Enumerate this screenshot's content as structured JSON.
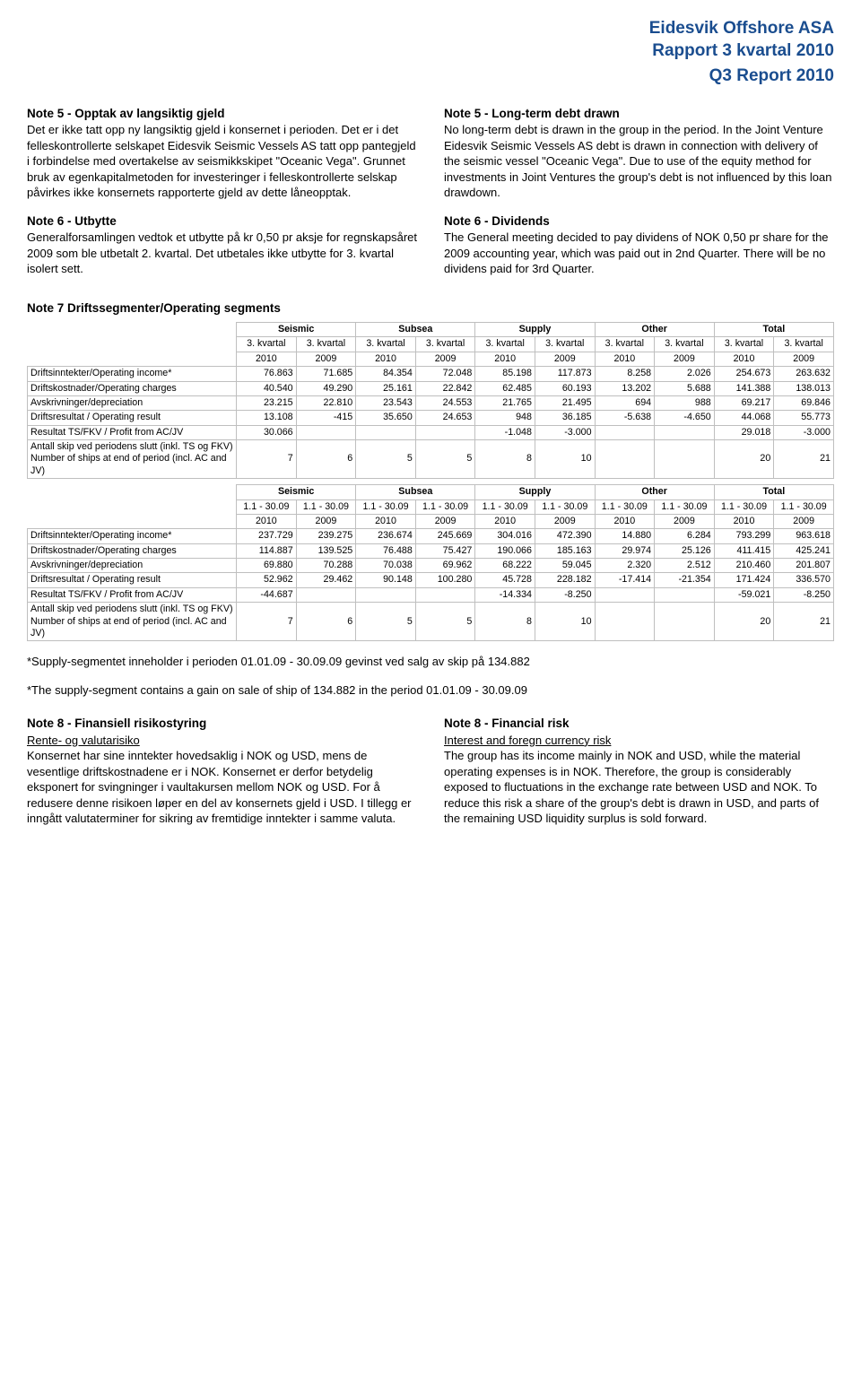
{
  "header": {
    "company": "Eidesvik Offshore ASA",
    "report_no": "Rapport 3 kvartal 2010",
    "report_en": "Q3 Report 2010"
  },
  "left_notes": {
    "n5_title": "Note 5 - Opptak av langsiktig gjeld",
    "n5_body": "Det er ikke tatt opp ny langsiktig gjeld i konsernet i perioden. Det er i det felleskontrollerte selskapet Eidesvik Seismic Vessels AS tatt opp pantegjeld i forbindelse med overtakelse av seismikkskipet \"Oceanic Vega\". Grunnet bruk av egenkapitalmetoden for investeringer i felleskontrollerte selskap påvirkes ikke konsernets rapporterte gjeld av dette låneopptak.",
    "n6_title": "Note 6 - Utbytte",
    "n6_body": "Generalforsamlingen vedtok et utbytte på kr 0,50 pr aksje for regnskapsåret 2009 som ble utbetalt 2. kvartal. Det utbetales ikke utbytte for 3. kvartal isolert sett."
  },
  "right_notes": {
    "n5_title": "Note 5 - Long-term debt drawn",
    "n5_body": "No long-term debt is drawn in the group in the period. In the Joint Venture Eidesvik Seismic Vessels AS debt is drawn in connection with delivery of the seismic vessel \"Oceanic Vega\". Due to use of the equity method for investments in Joint Ventures the group's debt is not influenced by this loan drawdown.",
    "n6_title": "Note 6 - Dividends",
    "n6_body": "The General meeting decided to pay dividens of NOK 0,50 pr share for the 2009 accounting year, which was paid out in 2nd Quarter. There will be no dividens paid for 3rd Quarter."
  },
  "segments": {
    "heading": "Note 7 Driftssegmenter/Operating segments",
    "groups": [
      "Seismic",
      "Subsea",
      "Supply",
      "Other",
      "Total"
    ],
    "sub_q": "3. kvartal",
    "year_2010": "2010",
    "year_2009": "2009",
    "rows_q": [
      {
        "label": "Driftsinntekter/Operating income*",
        "v": [
          "76.863",
          "71.685",
          "84.354",
          "72.048",
          "85.198",
          "117.873",
          "8.258",
          "2.026",
          "254.673",
          "263.632"
        ]
      },
      {
        "label": "Driftskostnader/Operating charges",
        "v": [
          "40.540",
          "49.290",
          "25.161",
          "22.842",
          "62.485",
          "60.193",
          "13.202",
          "5.688",
          "141.388",
          "138.013"
        ]
      },
      {
        "label": "Avskrivninger/depreciation",
        "v": [
          "23.215",
          "22.810",
          "23.543",
          "24.553",
          "21.765",
          "21.495",
          "694",
          "988",
          "69.217",
          "69.846"
        ]
      },
      {
        "label": "Driftsresultat / Operating result",
        "v": [
          "13.108",
          "-415",
          "35.650",
          "24.653",
          "948",
          "36.185",
          "-5.638",
          "-4.650",
          "44.068",
          "55.773"
        ]
      },
      {
        "label": "Resultat TS/FKV / Profit from AC/JV",
        "v": [
          "30.066",
          "",
          "",
          "",
          "-1.048",
          "-3.000",
          "",
          "",
          "29.018",
          "-3.000"
        ]
      },
      {
        "label": "Antall skip ved periodens slutt (inkl. TS og FKV)\nNumber of ships at end of period (incl. AC and JV)",
        "v": [
          "7",
          "6",
          "5",
          "5",
          "8",
          "10",
          "",
          "",
          "20",
          "21"
        ]
      }
    ],
    "sub_ytd": "1.1 - 30.09",
    "rows_ytd": [
      {
        "label": "Driftsinntekter/Operating income*",
        "v": [
          "237.729",
          "239.275",
          "236.674",
          "245.669",
          "304.016",
          "472.390",
          "14.880",
          "6.284",
          "793.299",
          "963.618"
        ]
      },
      {
        "label": "Driftskostnader/Operating charges",
        "v": [
          "114.887",
          "139.525",
          "76.488",
          "75.427",
          "190.066",
          "185.163",
          "29.974",
          "25.126",
          "411.415",
          "425.241"
        ]
      },
      {
        "label": "Avskrivninger/depreciation",
        "v": [
          "69.880",
          "70.288",
          "70.038",
          "69.962",
          "68.222",
          "59.045",
          "2.320",
          "2.512",
          "210.460",
          "201.807"
        ]
      },
      {
        "label": "Driftsresultat / Operating result",
        "v": [
          "52.962",
          "29.462",
          "90.148",
          "100.280",
          "45.728",
          "228.182",
          "-17.414",
          "-21.354",
          "171.424",
          "336.570"
        ]
      },
      {
        "label": "Resultat TS/FKV / Profit from AC/JV",
        "v": [
          "-44.687",
          "",
          "",
          "",
          "-14.334",
          "-8.250",
          "",
          "",
          "-59.021",
          "-8.250"
        ]
      },
      {
        "label": "Antall skip ved periodens slutt (inkl. TS og FKV)\nNumber of ships at end of period (incl. AC and JV)",
        "v": [
          "7",
          "6",
          "5",
          "5",
          "8",
          "10",
          "",
          "",
          "20",
          "21"
        ]
      }
    ]
  },
  "footnotes": {
    "no": "*Supply-segmentet inneholder i perioden 01.01.09 - 30.09.09 gevinst ved salg av skip på 134.882",
    "en": "*The supply-segment contains a gain on sale of ship of 134.882 in the period 01.01.09 - 30.09.09"
  },
  "note8_left": {
    "title": "Note 8 - Finansiell risikostyring",
    "sub": "Rente- og valutarisiko",
    "body": "Konsernet har sine inntekter hovedsaklig i NOK og USD, mens de vesentlige driftskostnadene er i NOK. Konsernet er derfor betydelig eksponert for svingninger i vaultakursen mellom NOK og USD. For å redusere denne risikoen løper en del av konsernets gjeld i USD. I tillegg er inngått valutaterminer for sikring av fremtidige inntekter i samme valuta."
  },
  "note8_right": {
    "title": "Note 8  - Financial risk",
    "sub": "Interest and foregn currency risk",
    "body": "The group has its income mainly in NOK and USD, while the material operating expenses is in NOK. Therefore, the group is considerably exposed to fluctuations in the exchange rate between USD and NOK. To reduce this risk a share of the group's debt is drawn in USD, and parts of the remaining USD liquidity surplus is sold forward."
  },
  "colors": {
    "title_color": "#1a4d8f",
    "border_color": "#bfbfbf",
    "background": "#ffffff"
  }
}
